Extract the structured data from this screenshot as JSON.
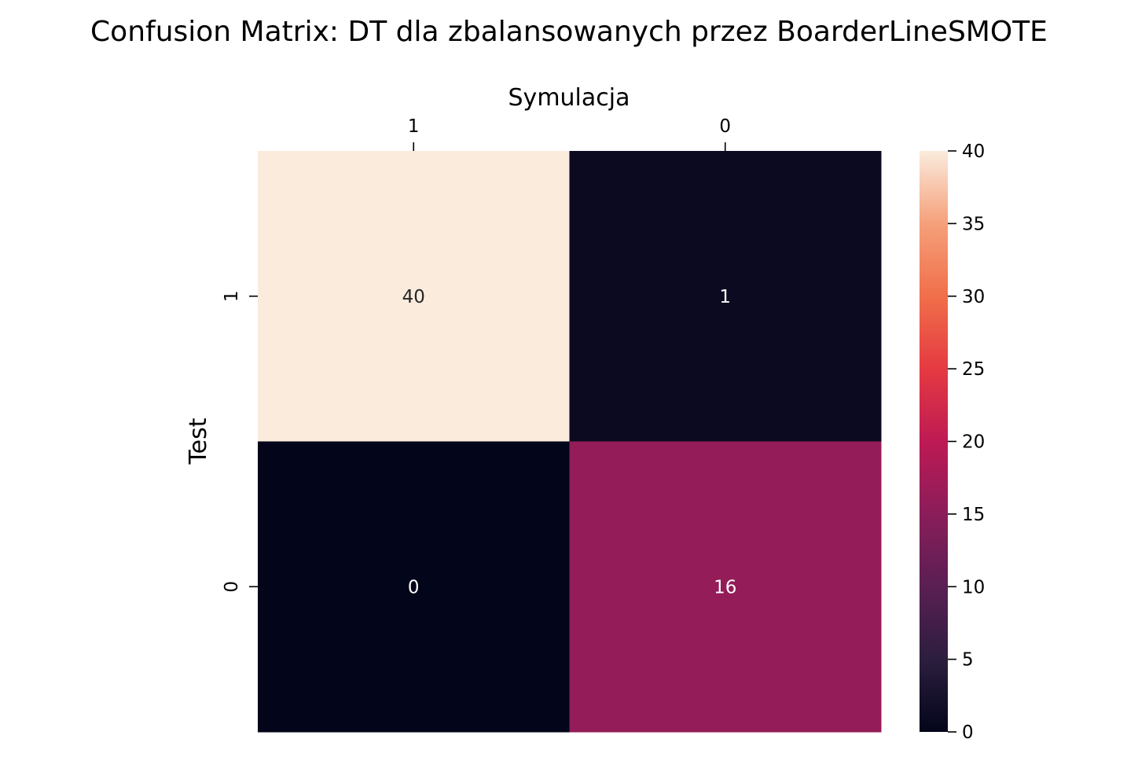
{
  "chart_data": {
    "type": "heatmap",
    "title": "Confusion Matrix: DT dla zbalansowanych przez BoarderLineSMOTE",
    "xlabel": "Symulacja",
    "ylabel": "Test",
    "x_categories": [
      "1",
      "0"
    ],
    "y_categories": [
      "1",
      "0"
    ],
    "values": [
      [
        40,
        1
      ],
      [
        0,
        16
      ]
    ],
    "colorbar": {
      "range": [
        0,
        40
      ],
      "ticks": [
        "0",
        "5",
        "10",
        "15",
        "20",
        "25",
        "30",
        "35",
        "40"
      ],
      "colormap": "rocket"
    },
    "x_axis_position": "top",
    "grid": false
  }
}
